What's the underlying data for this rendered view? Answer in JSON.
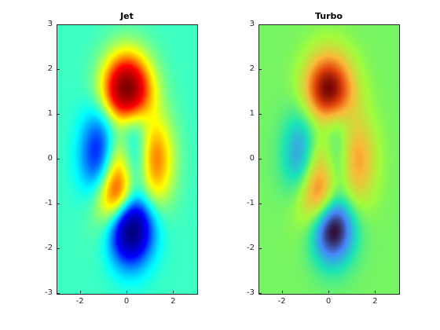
{
  "chart_data": [
    {
      "type": "heatmap",
      "title": "Jet",
      "colormap": "jet",
      "xlim": [
        -3,
        3
      ],
      "ylim": [
        -3,
        3
      ],
      "xticks": [
        -2,
        0,
        2
      ],
      "yticks": [
        -3,
        -2,
        -1,
        0,
        1,
        2,
        3
      ],
      "xlabel": "",
      "ylabel": "",
      "colors": [
        "#000080",
        "#0000ff",
        "#00ffff",
        "#ffff00",
        "#ff0000",
        "#800000"
      ]
    },
    {
      "type": "heatmap",
      "title": "Turbo",
      "colormap": "turbo",
      "xlim": [
        -3,
        3
      ],
      "ylim": [
        -3,
        3
      ],
      "xticks": [
        -2,
        0,
        2
      ],
      "yticks": [
        -3,
        -2,
        -1,
        0,
        1,
        2,
        3
      ],
      "xlabel": "",
      "ylabel": "",
      "colors": [
        "#30123b",
        "#4686fb",
        "#1ae4b6",
        "#a2fc3c",
        "#faba39",
        "#e4460a",
        "#7a0403"
      ]
    }
  ]
}
